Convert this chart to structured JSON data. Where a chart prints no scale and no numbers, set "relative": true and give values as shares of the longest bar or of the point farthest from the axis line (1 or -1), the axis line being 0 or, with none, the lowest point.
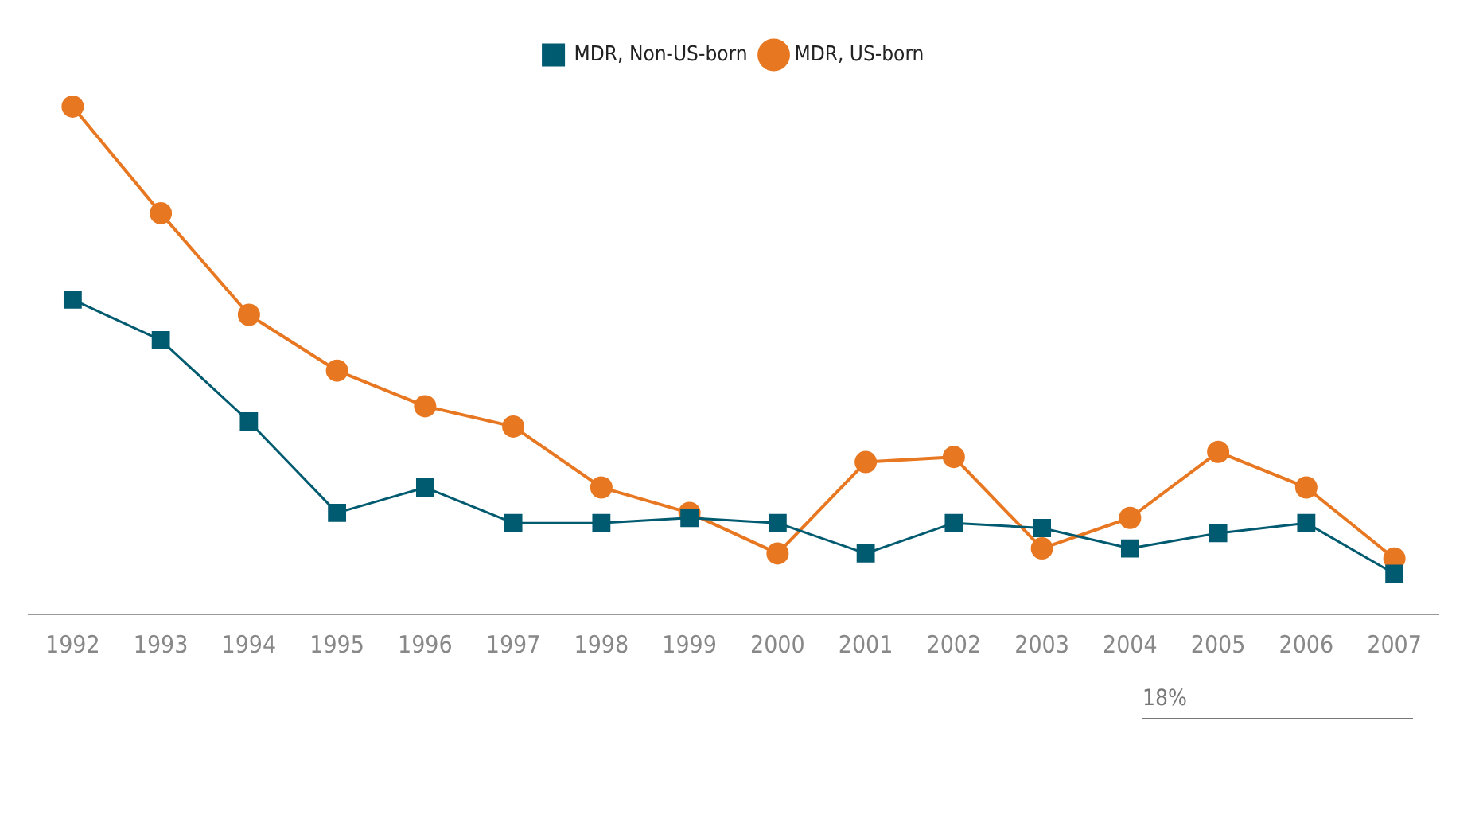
{
  "chart_data": [
    {
      "type": "line",
      "relative": true,
      "categories": [
        "1992",
        "1993",
        "1994",
        "1995",
        "1996",
        "1997",
        "1998",
        "1999",
        "2000",
        "2001",
        "2002",
        "2003",
        "2004",
        "2005",
        "2006",
        "2007"
      ],
      "series": [
        {
          "name": "MDR, US-born",
          "color": "#e87722",
          "marker": "circle",
          "values": [
            1,
            0.79,
            0.59,
            0.48,
            0.41,
            0.37,
            0.25,
            0.2,
            0.12,
            0.3,
            0.31,
            0.13,
            0.19,
            0.32,
            0.25,
            0.11
          ]
        },
        {
          "name": "MDR, Non-US-born",
          "color": "#005a70",
          "marker": "square",
          "values": [
            0.62,
            0.54,
            0.38,
            0.2,
            0.25,
            0.18,
            0.18,
            0.19,
            0.18,
            0.12,
            0.18,
            0.17,
            0.13,
            0.16,
            0.18,
            0.08
          ]
        }
      ],
      "legend": "top",
      "grid": false
    },
    {
      "type": "other",
      "annotations": [
        "18%"
      ]
    }
  ]
}
